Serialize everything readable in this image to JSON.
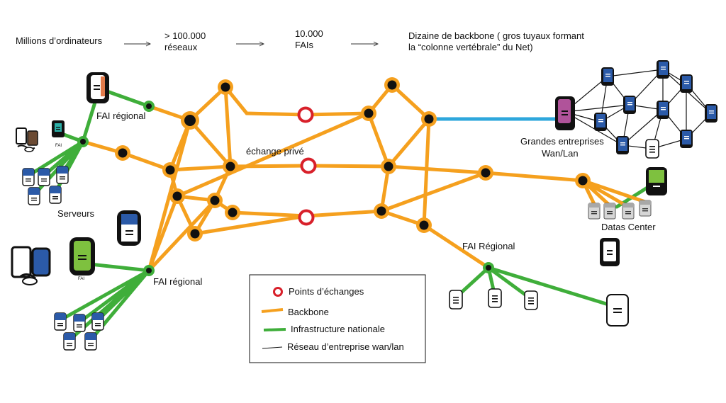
{
  "header": {
    "step1": "Millions d’ordinateurs",
    "step2_line1": "> 100.000",
    "step2_line2": "réseaux",
    "step3_line1": "10.000",
    "step3_line2": "FAIs",
    "step4_line1": "Dizaine de backbone ( gros tuyaux formant",
    "step4_line2": "la “colonne vertébrale” du Net)"
  },
  "labels": {
    "fai_regional_top": "FAI régional",
    "echange_prive": "échange privé",
    "serveurs": "Serveurs",
    "fai_regional_bottom": "FAI régional",
    "fai_regional_right": "FAI Régional",
    "grandes_entreprises_line1": "Grandes entreprises",
    "grandes_entreprises_line2": "Wan/Lan",
    "datas_center": "Datas Center",
    "fai_small_1": "FAI",
    "fai_small_2": "FAI"
  },
  "legend": {
    "items": [
      {
        "label": "Points d’échanges",
        "symbol": "red-ring"
      },
      {
        "label": "Backbone",
        "symbol": "orange-line"
      },
      {
        "label": "Infrastructure nationale",
        "symbol": "green-line"
      },
      {
        "label": "Réseau d’entreprise wan/lan",
        "symbol": "black-line"
      }
    ]
  },
  "colors": {
    "backbone": "#f5a01e",
    "national": "#3fae3a",
    "exchange": "#d8202a",
    "enterprise_link": "#2ea7dc",
    "node": "#111111",
    "server_blue": "#2b5aa8",
    "server_green": "#7ec13f",
    "server_magenta": "#b0539a"
  }
}
